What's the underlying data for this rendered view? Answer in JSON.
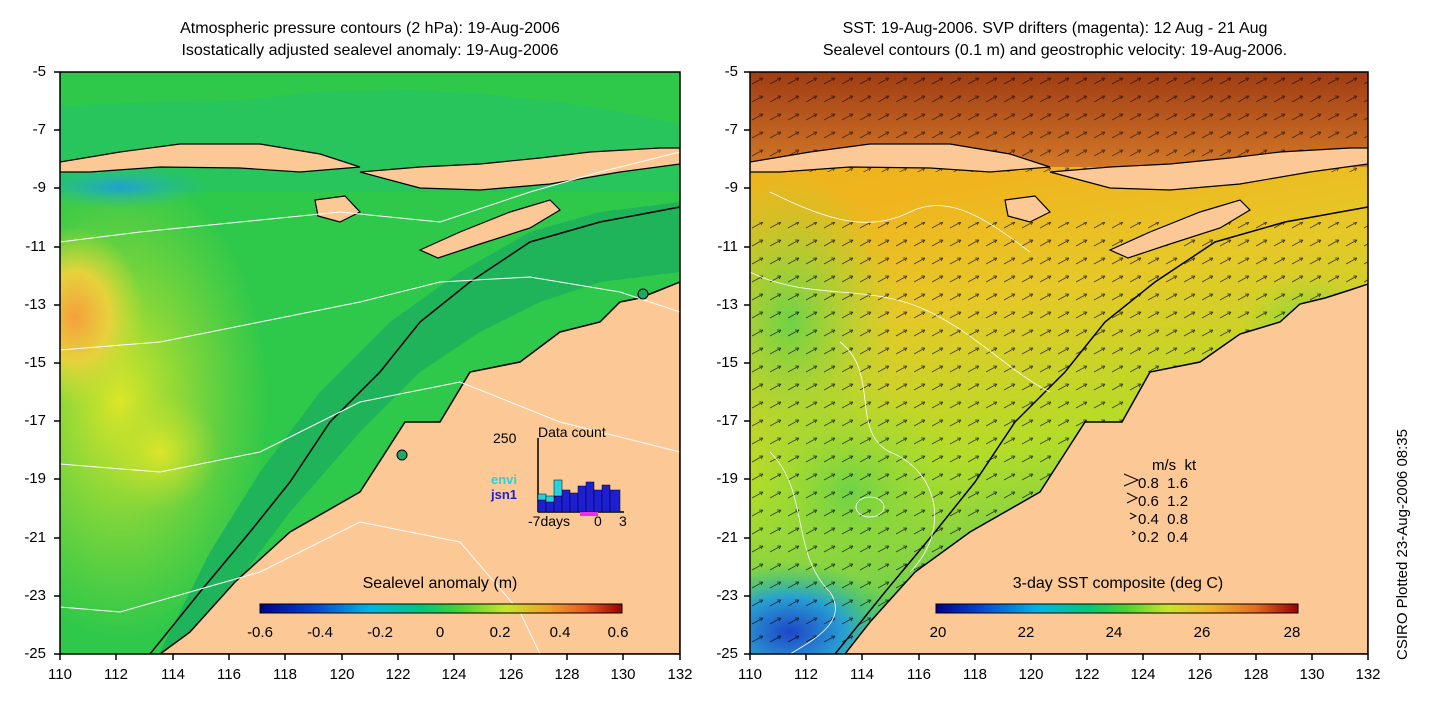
{
  "left_panel": {
    "title_line1": "Atmospheric pressure contours (2 hPa): 19-Aug-2006",
    "title_line2": "Isostatically adjusted sealevel anomaly: 19-Aug-2006",
    "lon_ticks": [
      "110",
      "112",
      "114",
      "116",
      "118",
      "120",
      "122",
      "124",
      "126",
      "128",
      "130",
      "132"
    ],
    "lat_ticks": [
      "-5",
      "-7",
      "-9",
      "-11",
      "-13",
      "-15",
      "-17",
      "-19",
      "-21",
      "-23",
      "-25"
    ],
    "colorbar": {
      "label": "Sealevel anomaly (m)",
      "ticks": [
        "-0.6",
        "-0.4",
        "-0.2",
        "0",
        "0.2",
        "0.4",
        "0.6"
      ]
    },
    "inset": {
      "title": "Data count",
      "ymax": "250",
      "series1": "envi",
      "series2": "jsn1",
      "x_left": "-7days",
      "x_mid": "0",
      "x_right": "3",
      "colors": {
        "envi": "#28d2dc",
        "jsn1": "#1e1ed2"
      }
    }
  },
  "right_panel": {
    "title_line1": "SST: 19-Aug-2006. SVP drifters (magenta): 12 Aug - 21 Aug",
    "title_line2": "Sealevel contours (0.1 m) and geostrophic velocity: 19-Aug-2006.",
    "lon_ticks": [
      "110",
      "112",
      "114",
      "116",
      "118",
      "120",
      "122",
      "124",
      "126",
      "128",
      "130",
      "132"
    ],
    "lat_ticks": [
      "-5",
      "-7",
      "-9",
      "-11",
      "-13",
      "-15",
      "-17",
      "-19",
      "-21",
      "-23",
      "-25"
    ],
    "colorbar": {
      "label": "3-day SST composite (deg C)",
      "ticks": [
        "20",
        "22",
        "24",
        "26",
        "28"
      ]
    },
    "vector_legend": {
      "header": "m/s  kt",
      "rows": [
        "0.8  1.6",
        "0.6  1.2",
        "0.4  0.8",
        "0.2  0.4"
      ]
    }
  },
  "credit": "CSIRO Plotted 23-Aug-2006 08:35",
  "colors": {
    "land": "#fcc896",
    "ocean_green": "#2ec84a",
    "shelf_green": "#1fb45a"
  }
}
